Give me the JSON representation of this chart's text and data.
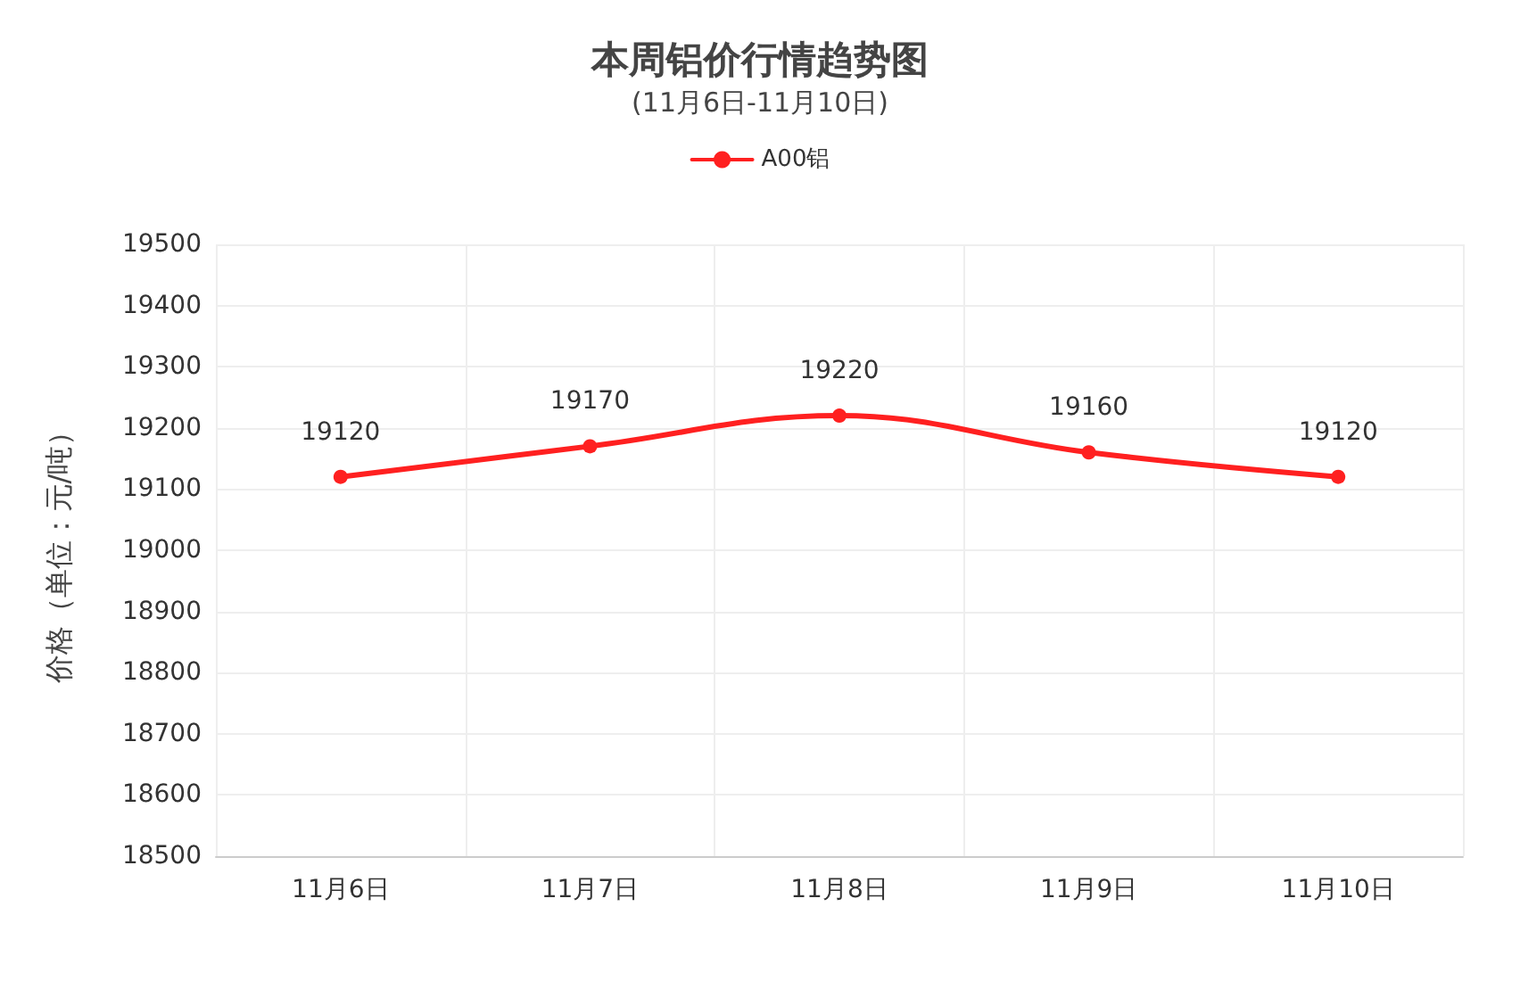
{
  "chart_data": {
    "type": "line",
    "title": "本周铝价行情趋势图",
    "subtitle": "(11月6日-11月10日)",
    "ylabel": "价格（单位：元/吨）",
    "categories": [
      "11月6日",
      "11月7日",
      "11月8日",
      "11月9日",
      "11月10日"
    ],
    "series": [
      {
        "name": "A00铝",
        "color": "#ff2020",
        "values": [
          19120,
          19170,
          19220,
          19160,
          19120
        ]
      }
    ],
    "ylim": [
      18500,
      19500
    ],
    "yticks": [
      18500,
      18600,
      18700,
      18800,
      18900,
      19000,
      19100,
      19200,
      19300,
      19400,
      19500
    ],
    "grid": true,
    "legend": "top",
    "marker": "circle",
    "line_style": "solid",
    "data_labels": true
  }
}
